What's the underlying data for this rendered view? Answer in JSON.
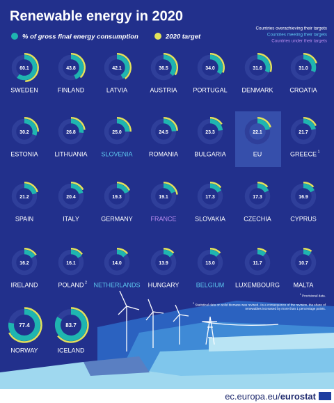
{
  "chart_data": {
    "type": "donut",
    "title": "Renewable energy in 2020",
    "categories": [
      "SWEDEN",
      "FINLAND",
      "LATVIA",
      "AUSTRIA",
      "PORTUGAL",
      "DENMARK",
      "CROATIA",
      "ESTONIA",
      "LITHUANIA",
      "SLOVENIA",
      "ROMANIA",
      "BULGARIA",
      "EU",
      "GREECE",
      "SPAIN",
      "ITALY",
      "GERMANY",
      "FRANCE",
      "SLOVAKIA",
      "CZECHIA",
      "CYPRUS",
      "IRELAND",
      "POLAND",
      "NETHERLANDS",
      "HUNGARY",
      "BELGIUM",
      "LUXEMBOURG",
      "MALTA",
      "NORWAY",
      "ICELAND"
    ],
    "category_marks": [
      null,
      null,
      null,
      null,
      null,
      null,
      null,
      null,
      null,
      null,
      null,
      null,
      null,
      "1",
      null,
      null,
      null,
      null,
      null,
      null,
      null,
      null,
      "2",
      null,
      null,
      null,
      null,
      null,
      null,
      null
    ],
    "category_label_colors": [
      "#ffffff",
      "#ffffff",
      "#ffffff",
      "#ffffff",
      "#ffffff",
      "#ffffff",
      "#ffffff",
      "#ffffff",
      "#ffffff",
      "#5ec8f0",
      "#ffffff",
      "#ffffff",
      "#ffffff",
      "#ffffff",
      "#ffffff",
      "#ffffff",
      "#ffffff",
      "#b98cf0",
      "#ffffff",
      "#ffffff",
      "#ffffff",
      "#ffffff",
      "#ffffff",
      "#5ec8f0",
      "#ffffff",
      "#5ec8f0",
      "#ffffff",
      "#ffffff",
      "#ffffff",
      "#ffffff"
    ],
    "series": [
      {
        "name": "% of gross final energy consumption",
        "color": "#1fb5b0",
        "values": [
          60.1,
          43.8,
          42.1,
          36.5,
          34.0,
          31.6,
          31.0,
          30.2,
          26.8,
          25.0,
          24.5,
          23.3,
          22.1,
          21.7,
          21.2,
          20.4,
          19.3,
          19.1,
          17.3,
          17.3,
          16.9,
          16.2,
          16.1,
          14.0,
          13.9,
          13.0,
          11.7,
          10.7,
          77.4,
          83.7
        ],
        "value_labels": [
          "60.1",
          "43.8",
          "42.1",
          "36.5",
          "34.0",
          "31.6",
          "31.0",
          "30.2",
          "26.8",
          "25.0",
          "24.5",
          "23.3",
          "22.1",
          "21.7",
          "21.2",
          "20.4",
          "19.3",
          "19.1",
          "17.3",
          "17.3",
          "16.9",
          "16.2",
          "16.1",
          "14.0",
          "13.9",
          "13.0",
          "11.7",
          "10.7",
          "77.4",
          "83.7"
        ]
      },
      {
        "name": "2020 target",
        "color": "#e3e35a",
        "values": [
          49,
          38,
          40,
          34,
          31,
          30,
          20,
          25,
          23,
          25,
          24,
          16,
          20,
          18,
          20,
          17,
          18,
          23,
          14,
          13,
          13,
          16,
          15,
          14,
          13,
          13,
          11,
          10,
          67.5,
          64
        ]
      }
    ],
    "status_legend": [
      {
        "label": "Countries overachieving their targets",
        "color": "#ffffff"
      },
      {
        "label": "Countries meeting their targets",
        "color": "#5ec8f0"
      },
      {
        "label": "Countries under their targets",
        "color": "#b98cf0"
      }
    ],
    "notes": [
      {
        "mark": "1",
        "text": "Provisional data."
      },
      {
        "mark": "2",
        "text": "Statistical data on solid biomass was revised. As a consequence of the revision, the share of renewables increased by more than 1 percentage points."
      }
    ],
    "source": {
      "domain": "ec.europa.eu/",
      "name": "eurostat"
    }
  }
}
